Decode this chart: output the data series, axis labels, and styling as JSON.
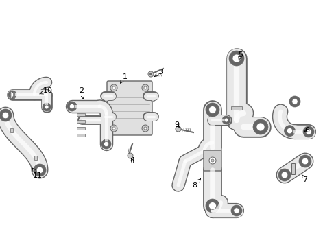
{
  "background_color": "#ffffff",
  "line_color": "#777777",
  "label_color": "#000000",
  "fig_width": 4.9,
  "fig_height": 3.6,
  "dpi": 100,
  "line_width": 1.0,
  "gray": "#aaaaaa",
  "dark": "#666666",
  "light": "#dddddd"
}
